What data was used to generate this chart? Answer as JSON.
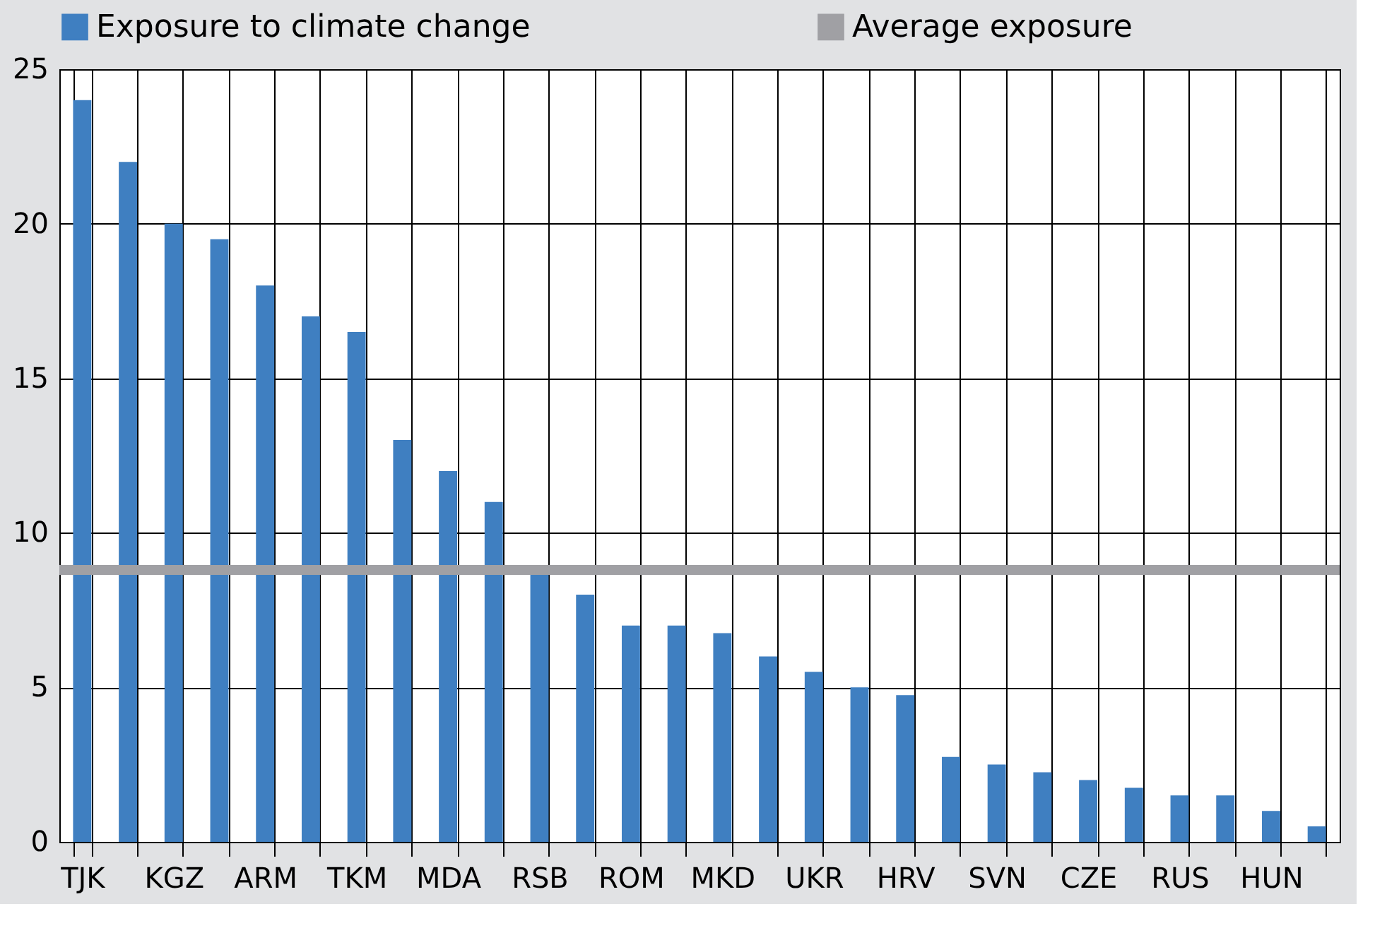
{
  "chart_data": {
    "type": "bar",
    "categories": [
      "TJK",
      null,
      "KGZ",
      null,
      "ARM",
      null,
      "TKM",
      null,
      "MDA",
      null,
      "RSB",
      null,
      "ROM",
      null,
      "MKD",
      null,
      "UKR",
      null,
      "HRV",
      null,
      "SVN",
      null,
      "CZE",
      null,
      "RUS",
      null,
      "HUN",
      null
    ],
    "series": [
      {
        "name": "Exposure to climate change",
        "color": "#3f7fc1",
        "values": [
          24,
          22,
          20,
          19.5,
          18,
          17,
          16.5,
          13,
          12,
          11,
          8.7,
          8,
          7,
          7,
          6.75,
          6,
          5.5,
          5,
          4.75,
          2.75,
          2.5,
          2.25,
          2,
          1.75,
          1.5,
          1.5,
          1,
          0.5
        ]
      }
    ],
    "ref_lines": [
      {
        "axis": "y",
        "value": 8.8,
        "label": "Average exposure",
        "color": "#a0a0a4",
        "line_style": "solid"
      }
    ],
    "ylim": [
      0,
      25
    ],
    "yticks": [
      0,
      5,
      10,
      15,
      20,
      25
    ],
    "grid": true,
    "legend": "top"
  }
}
